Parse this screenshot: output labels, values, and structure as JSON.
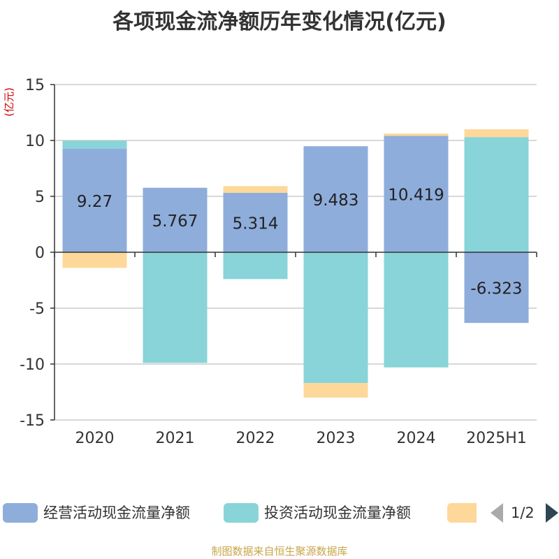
{
  "chart_data": {
    "type": "bar",
    "stacked": true,
    "title": "各项现金流净额历年变化情况(亿元)",
    "unit_label": "(亿元)",
    "categories": [
      "2020",
      "2021",
      "2022",
      "2023",
      "2024",
      "2025H1"
    ],
    "series": [
      {
        "name": "经营活动现金流量净额",
        "color": "#8eaddb",
        "values": [
          9.27,
          5.767,
          5.314,
          9.483,
          10.419,
          -6.323
        ]
      },
      {
        "name": "投资活动现金流量净额",
        "color": "#88d4d8",
        "values": [
          0.7,
          -9.9,
          -2.4,
          -11.7,
          -10.3,
          10.3
        ]
      },
      {
        "name": "",
        "color": "#fdd89a",
        "values": [
          -1.4,
          0,
          0.6,
          -1.3,
          0.2,
          0.7
        ]
      }
    ],
    "data_labels": [
      "9.27",
      "5.767",
      "5.314",
      "9.483",
      "10.419",
      "-6.323"
    ],
    "ylim": [
      -15,
      15
    ],
    "yticks": [
      15,
      10,
      5,
      0,
      -5,
      -10,
      -15
    ],
    "ytick_labels": [
      "15",
      "10",
      "5",
      "0",
      "-5",
      "-10",
      "-15"
    ],
    "grid": true,
    "legend": "bottom"
  },
  "legend": {
    "items": [
      "经营活动现金流量净额",
      "投资活动现金流量净额"
    ],
    "page": "1/2"
  },
  "source": "制图数据来自恒生聚源数据库"
}
